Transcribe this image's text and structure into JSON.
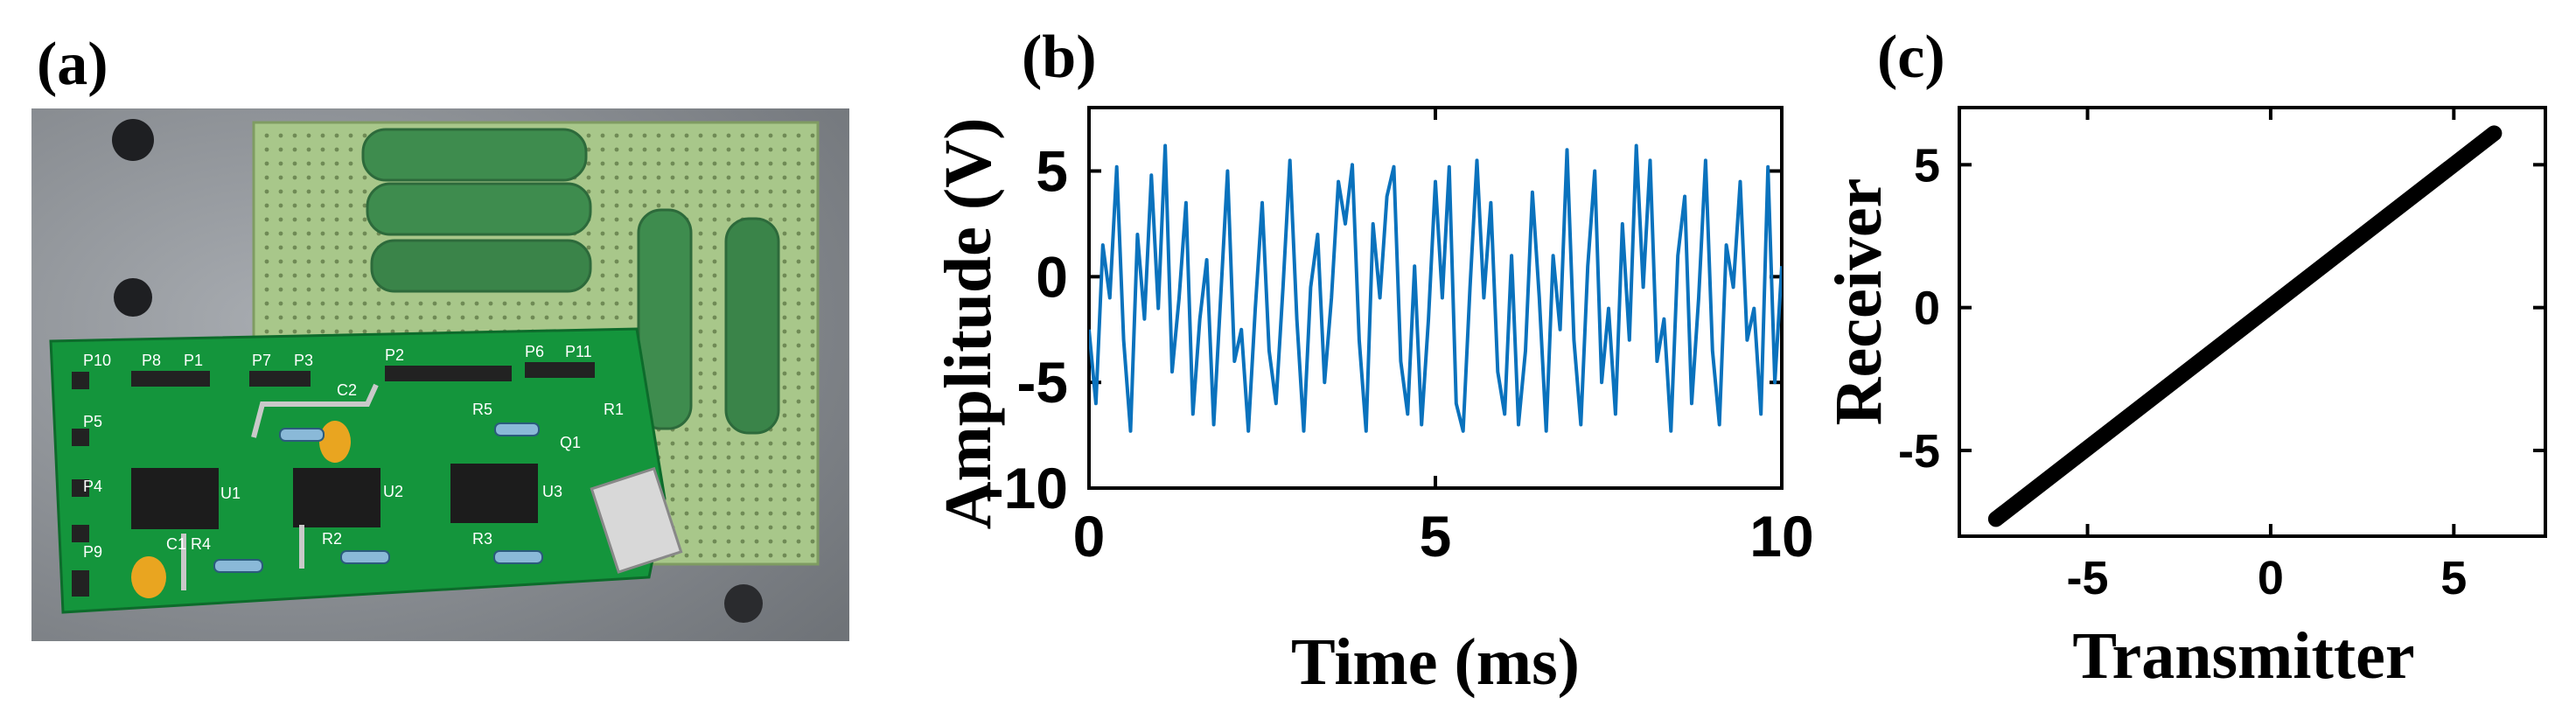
{
  "panels": {
    "a": {
      "label": "(a)",
      "photo_labels": [
        "P10",
        "P8",
        "P1",
        "P7",
        "P3",
        "P2",
        "P6",
        "P11",
        "P5",
        "P4",
        "P9",
        "C2",
        "R5",
        "R1",
        "Q1",
        "U1",
        "U2",
        "U3",
        "C1",
        "R4",
        "R2",
        "R3"
      ]
    },
    "b": {
      "label": "(b)"
    },
    "c": {
      "label": "(c)"
    }
  },
  "colors": {
    "signal": "#0a72bd",
    "scatter": "#000000",
    "board_green": "#14953c",
    "perfboard": "#a8c78a",
    "resistor": "#3e8c4e",
    "background_plate": "#8f9399"
  },
  "chart_data": [
    {
      "type": "line",
      "panel": "(b)",
      "xlabel": "Time (ms)",
      "ylabel": "Amplitude (V)",
      "xlim": [
        0,
        10
      ],
      "ylim": [
        -10,
        8
      ],
      "xticks": [
        0,
        5,
        10
      ],
      "yticks": [
        5,
        0,
        -5,
        -10
      ],
      "grid": false,
      "series": [
        {
          "x": [
            0,
            0.1,
            0.2,
            0.3,
            0.4,
            0.5,
            0.6,
            0.7,
            0.8,
            0.9,
            1.0,
            1.1,
            1.2,
            1.3,
            1.4,
            1.5,
            1.6,
            1.7,
            1.8,
            1.9,
            2.0,
            2.1,
            2.2,
            2.3,
            2.4,
            2.5,
            2.6,
            2.7,
            2.8,
            2.9,
            3.0,
            3.1,
            3.2,
            3.3,
            3.4,
            3.5,
            3.6,
            3.7,
            3.8,
            3.9,
            4.0,
            4.1,
            4.2,
            4.3,
            4.4,
            4.5,
            4.6,
            4.7,
            4.8,
            4.9,
            5.0,
            5.1,
            5.2,
            5.3,
            5.4,
            5.5,
            5.6,
            5.7,
            5.8,
            5.9,
            6.0,
            6.1,
            6.2,
            6.3,
            6.4,
            6.5,
            6.6,
            6.7,
            6.8,
            6.9,
            7.0,
            7.1,
            7.2,
            7.3,
            7.4,
            7.5,
            7.6,
            7.7,
            7.8,
            7.9,
            8.0,
            8.1,
            8.2,
            8.3,
            8.4,
            8.5,
            8.6,
            8.7,
            8.8,
            8.9,
            9.0,
            9.1,
            9.2,
            9.3,
            9.4,
            9.5,
            9.6,
            9.7,
            9.8,
            9.9,
            10.0
          ],
          "y": [
            -2.5,
            -6.0,
            1.5,
            -1.0,
            5.2,
            -3.0,
            -7.3,
            2.0,
            -2.0,
            4.8,
            -1.5,
            6.2,
            -4.5,
            -1.0,
            3.5,
            -6.5,
            -2.0,
            0.8,
            -7.0,
            -1.0,
            5.0,
            -4.0,
            -2.5,
            -7.3,
            -1.5,
            3.5,
            -3.5,
            -6.0,
            -0.5,
            5.5,
            -2.0,
            -7.3,
            -0.5,
            2.0,
            -5.0,
            -1.0,
            4.5,
            2.5,
            5.3,
            -3.0,
            -7.3,
            2.5,
            -1.0,
            3.8,
            5.2,
            -4.0,
            -6.5,
            0.5,
            -7.0,
            -2.0,
            4.5,
            -1.0,
            5.2,
            -6.0,
            -7.3,
            -0.5,
            5.5,
            -1.0,
            3.5,
            -4.5,
            -6.5,
            1.0,
            -7.0,
            -3.5,
            4.0,
            -1.0,
            -7.3,
            1.0,
            -2.5,
            6.0,
            -3.0,
            -7.0,
            0.5,
            5.0,
            -5.0,
            -1.5,
            -6.5,
            2.5,
            -3.0,
            6.2,
            -0.5,
            5.5,
            -4.0,
            -2.0,
            -7.3,
            1.0,
            3.8,
            -6.0,
            -1.0,
            5.5,
            -3.5,
            -7.0,
            1.5,
            -0.5,
            4.5,
            -3.0,
            -1.5,
            -6.5,
            5.2,
            -5.0,
            0.5
          ]
        }
      ]
    },
    {
      "type": "scatter",
      "panel": "(c)",
      "xlabel": "Transmitter",
      "ylabel": "Receiver",
      "xlim": [
        -8.5,
        7.5
      ],
      "ylim": [
        -8,
        7
      ],
      "xticks": [
        -5,
        0,
        5
      ],
      "yticks": [
        5,
        0,
        -5
      ],
      "grid": false,
      "series": [
        {
          "x": [
            -7.5,
            6.1
          ],
          "y": [
            -7.4,
            6.1
          ]
        }
      ]
    }
  ]
}
